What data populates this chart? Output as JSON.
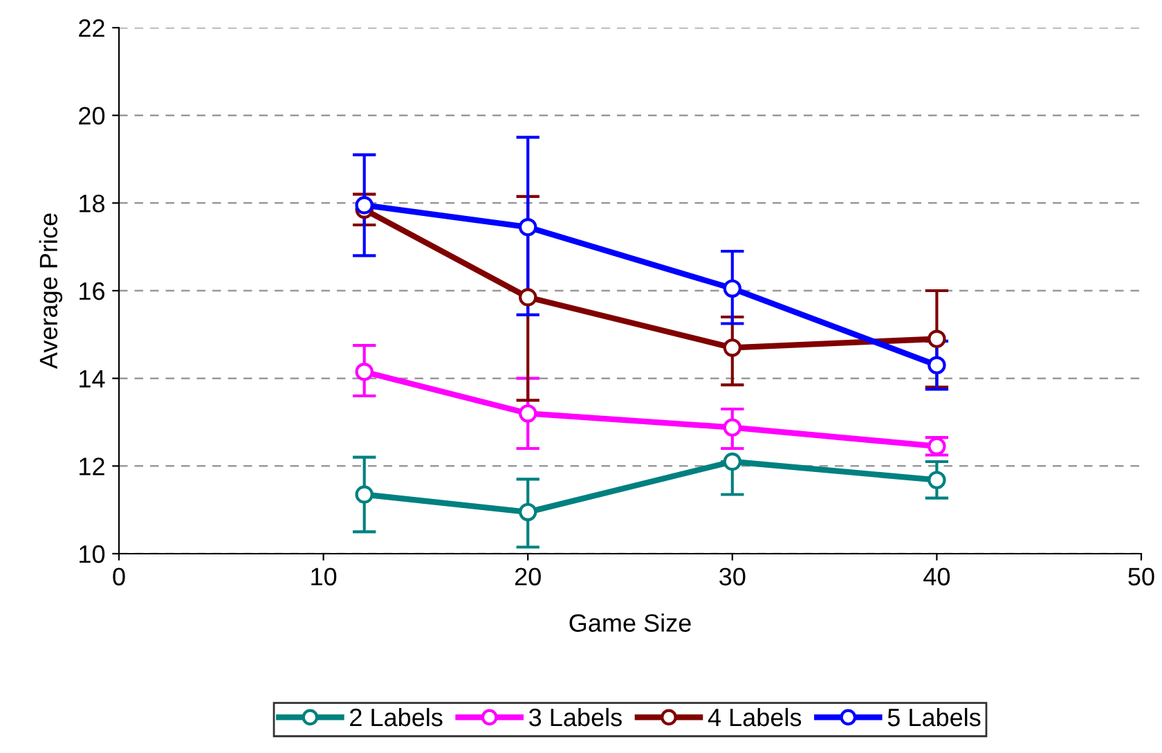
{
  "chart_data": {
    "type": "line",
    "xlabel": "Game Size",
    "ylabel": "Average Price",
    "x": [
      12,
      20,
      30,
      40
    ],
    "xlim": [
      0,
      50
    ],
    "xticks": [
      0,
      10,
      20,
      30,
      40,
      50
    ],
    "ylim": [
      10,
      22
    ],
    "yticks": [
      10,
      12,
      14,
      16,
      18,
      20,
      22
    ],
    "grid": "y",
    "legend": "bottom",
    "marker": "circle",
    "line_style": "solid",
    "series": [
      {
        "name": "2 Labels",
        "color": "#008080",
        "values": [
          11.35,
          10.95,
          12.1,
          11.68
        ],
        "errors": [
          [
            10.5,
            12.2
          ],
          [
            10.15,
            11.7
          ],
          [
            11.35,
            12.1
          ],
          [
            11.27,
            12.1
          ]
        ]
      },
      {
        "name": "3 Labels",
        "color": "#ff00ff",
        "values": [
          14.15,
          13.2,
          12.88,
          12.45
        ],
        "errors": [
          [
            13.6,
            14.75
          ],
          [
            12.4,
            14.0
          ],
          [
            12.4,
            13.3
          ],
          [
            12.25,
            12.65
          ]
        ]
      },
      {
        "name": "4 Labels",
        "color": "#800000",
        "values": [
          17.85,
          15.85,
          14.7,
          14.9
        ],
        "errors": [
          [
            17.5,
            18.2
          ],
          [
            13.5,
            18.15
          ],
          [
            13.85,
            15.4
          ],
          [
            13.8,
            16.0
          ]
        ]
      },
      {
        "name": "5 Labels",
        "color": "#0000ff",
        "values": [
          17.95,
          17.45,
          16.05,
          14.3
        ],
        "errors": [
          [
            16.8,
            19.1
          ],
          [
            15.45,
            19.5
          ],
          [
            15.25,
            16.9
          ],
          [
            13.75,
            14.85
          ]
        ]
      }
    ]
  }
}
